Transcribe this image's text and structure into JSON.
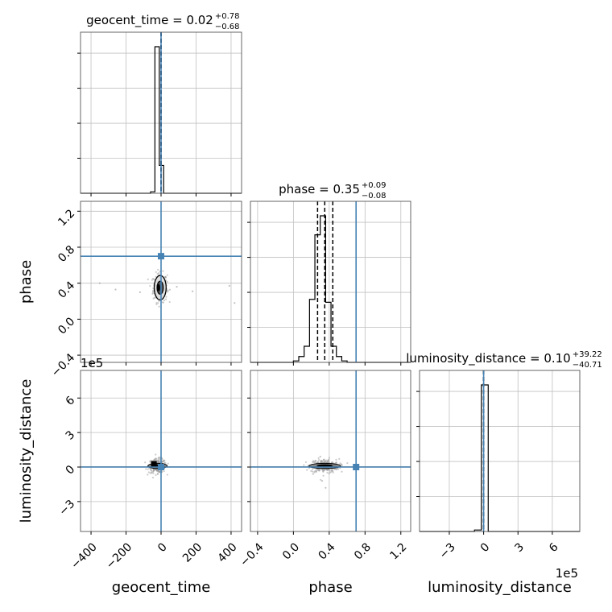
{
  "chart_data": {
    "type": "corner",
    "parameters": [
      {
        "name": "geocent_time",
        "label": "geocent_time",
        "title": {
          "prefix": "geocent_time = ",
          "value": "0.02",
          "upper": "+0.78",
          "lower": "−0.68"
        },
        "range": [
          -460,
          460
        ],
        "ticks": [
          -400,
          -200,
          0,
          200,
          400
        ],
        "tick_labels": [
          "−400",
          "−200",
          "0",
          "200",
          "400"
        ],
        "offset_text": "",
        "truth": 0,
        "quantiles": [
          -0.66,
          0.02,
          0.8
        ]
      },
      {
        "name": "phase",
        "label": "phase",
        "title": {
          "prefix": "phase = ",
          "value": "0.35",
          "upper": "+0.09",
          "lower": "−0.08"
        },
        "range": [
          -0.48,
          1.31
        ],
        "ticks": [
          -0.4,
          0.0,
          0.4,
          0.8,
          1.2
        ],
        "tick_labels": [
          "−0.4",
          "0.0",
          "0.4",
          "0.8",
          "1.2"
        ],
        "offset_text": "",
        "truth": 0.7,
        "quantiles": [
          0.27,
          0.35,
          0.44
        ]
      },
      {
        "name": "luminosity_distance",
        "label": "luminosity_distance",
        "title": {
          "prefix": "luminosity_distance = ",
          "value": "0.10",
          "upper": "+39.22",
          "lower": "−40.71"
        },
        "range": [
          -5.6,
          8.4
        ],
        "ticks": [
          -3,
          0,
          3,
          6
        ],
        "tick_labels": [
          "−3",
          "0",
          "3",
          "6"
        ],
        "offset_text": "1e5",
        "truth": 0,
        "quantiles": [
          -0.0004,
          1e-06,
          0.0004
        ]
      }
    ],
    "histograms": [
      {
        "param": "geocent_time",
        "edges": [
          -460,
          -435,
          -410,
          -385,
          -360,
          -335,
          -310,
          -285,
          -260,
          -235,
          -210,
          -185,
          -160,
          -135,
          -110,
          -85,
          -60,
          -35,
          -10,
          15,
          40,
          65,
          90,
          115,
          140,
          165,
          190,
          215,
          240,
          265,
          290,
          315,
          340,
          365,
          390,
          415,
          440,
          460
        ],
        "counts": [
          0,
          0,
          0,
          0,
          0,
          0,
          0,
          0,
          0,
          0,
          0,
          0,
          0,
          0,
          0,
          0,
          0.01,
          1.0,
          0.19,
          0,
          0,
          0,
          0,
          0,
          0,
          0,
          0,
          0,
          0,
          0,
          0,
          0,
          0,
          0,
          0,
          0,
          0
        ]
      },
      {
        "param": "phase",
        "edges": [
          -0.48,
          -0.42,
          -0.36,
          -0.3,
          -0.24,
          -0.18,
          -0.12,
          -0.06,
          0.0,
          0.06,
          0.12,
          0.18,
          0.24,
          0.3,
          0.36,
          0.42,
          0.48,
          0.54,
          0.6,
          0.66,
          0.72,
          0.78,
          0.84,
          0.9,
          0.96,
          1.02,
          1.08,
          1.14,
          1.2,
          1.26,
          1.31
        ],
        "counts": [
          0,
          0,
          0,
          0,
          0,
          0,
          0,
          0,
          0.01,
          0.04,
          0.11,
          0.43,
          0.87,
          1.0,
          0.41,
          0.11,
          0.04,
          0.01,
          0,
          0,
          0,
          0,
          0,
          0,
          0,
          0,
          0,
          0,
          0,
          0
        ]
      },
      {
        "param": "luminosity_distance",
        "edges": [
          -5.6,
          -5.0,
          -4.4,
          -3.8,
          -3.2,
          -2.6,
          -2.0,
          -1.4,
          -0.8,
          -0.2,
          0.4,
          1.0,
          1.6,
          2.2,
          2.8,
          3.4,
          4.0,
          4.6,
          5.2,
          5.8,
          6.4,
          7.0,
          7.6,
          8.2,
          8.4
        ],
        "counts": [
          0,
          0,
          0,
          0,
          0,
          0,
          0,
          0,
          0.01,
          1.0,
          0,
          0,
          0,
          0,
          0,
          0,
          0,
          0,
          0,
          0,
          0,
          0,
          0,
          0
        ]
      }
    ],
    "scatter": [
      {
        "x": "geocent_time",
        "y": "phase",
        "center": [
          -5,
          0.35
        ],
        "spread": [
          20,
          0.08
        ],
        "outliers": [
          [
            -260,
            0.33
          ],
          [
            -120,
            0.3
          ],
          [
            90,
            0.36
          ],
          [
            390,
            0.37
          ],
          [
            -350,
            0.4
          ],
          [
            180,
            0.31
          ],
          [
            420,
            0.18
          ]
        ]
      },
      {
        "x": "geocent_time",
        "y": "luminosity_distance",
        "center": [
          -20,
          0.1
        ],
        "spread": [
          25,
          0.3
        ],
        "outliers": []
      },
      {
        "x": "phase",
        "y": "luminosity_distance",
        "center": [
          0.35,
          0.1
        ],
        "spread": [
          0.08,
          0.3
        ],
        "outliers": [
          [
            0.32,
            -1.2
          ],
          [
            0.36,
            -1.8
          ],
          [
            0.3,
            0.9
          ],
          [
            0.22,
            -0.6
          ]
        ]
      }
    ],
    "colors": {
      "truth": "#4682b4",
      "hist": "#000000",
      "grid": "#c0c0c0",
      "points": "#9a9a9a"
    },
    "grid": true
  }
}
